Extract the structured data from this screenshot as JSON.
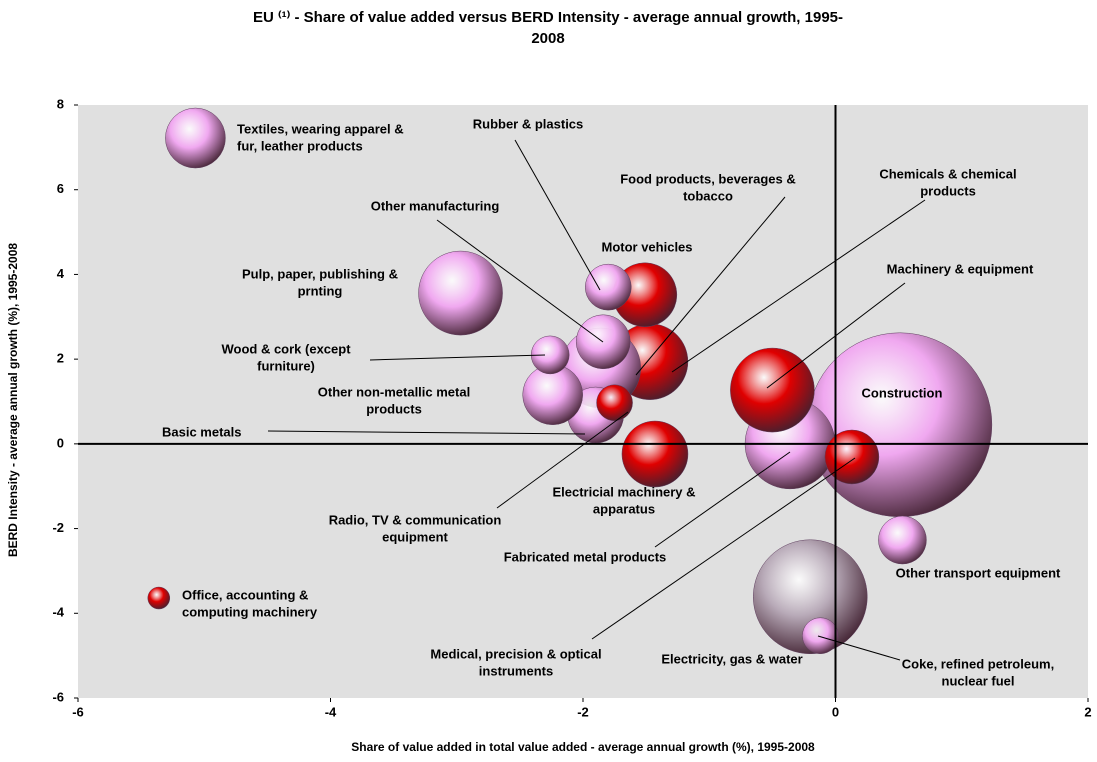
{
  "chart_data": {
    "type": "bubble",
    "title": [
      "EU ⁽¹⁾ - Share of value added versus BERD Intensity - average annual growth, 1995-",
      "2008"
    ],
    "xlabel": "Share of value added in total value added - average annual growth (%), 1995-2008",
    "ylabel": "BERD Intensity - average annual growth (%), 1995-2008",
    "xlim": [
      -6,
      2
    ],
    "xticks": [
      -6,
      -4,
      -2,
      0,
      2
    ],
    "ylim": [
      -6,
      8
    ],
    "yticks": [
      -6,
      -4,
      -2,
      0,
      2,
      4,
      6,
      8
    ],
    "points": [
      {
        "name": [
          "Construction"
        ],
        "x": 0.51,
        "y": 0.45,
        "size": 92,
        "color": "#f0a8f0"
      },
      {
        "name": [
          "Electricity, gas & water"
        ],
        "x": -0.2,
        "y": -3.61,
        "size": 57,
        "color": "#b8aab8"
      },
      {
        "name": [
          "Fabricated metal products"
        ],
        "x": -0.36,
        "y": 0.0,
        "size": 45,
        "color": "#f0a8f0"
      },
      {
        "name": [
          "Pulp, paper, publishing &",
          "prnting"
        ],
        "x": -2.97,
        "y": 3.56,
        "size": 42,
        "color": "#f0a8f0"
      },
      {
        "name": [
          "Machinery & equipment"
        ],
        "x": -0.5,
        "y": 1.27,
        "size": 42,
        "color": "#e00000"
      },
      {
        "name": [
          "Chemicals & chemical",
          "products"
        ],
        "x": -1.47,
        "y": 1.94,
        "size": 38,
        "color": "#e00000"
      },
      {
        "name": [
          "Food products, beverages &",
          "tobacco"
        ],
        "x": -1.86,
        "y": 1.79,
        "size": 40,
        "color": "#f0a8f0"
      },
      {
        "name": [
          "Motor vehicles"
        ],
        "x": -1.51,
        "y": 3.52,
        "size": 32,
        "color": "#e00000"
      },
      {
        "name": [
          "Electricial machinery &",
          "apparatus"
        ],
        "x": -1.43,
        "y": -0.24,
        "size": 33,
        "color": "#e00000"
      },
      {
        "name": [
          "Basic metals"
        ],
        "x": -1.9,
        "y": 0.68,
        "size": 28,
        "color": "#f0a8f0"
      },
      {
        "name": [
          "Other non-metallic metal",
          "products"
        ],
        "x": -2.24,
        "y": 1.16,
        "size": 30,
        "color": "#f0a8f0"
      },
      {
        "name": [
          "Other manufacturing"
        ],
        "x": -1.84,
        "y": 2.41,
        "size": 27,
        "color": "#f0a8f0"
      },
      {
        "name": [
          "Rubber & plastics"
        ],
        "x": -1.8,
        "y": 3.7,
        "size": 23,
        "color": "#f0a8f0"
      },
      {
        "name": [
          "Wood & cork (except",
          "furniture)"
        ],
        "x": -2.26,
        "y": 2.1,
        "size": 19,
        "color": "#f0a8f0"
      },
      {
        "name": [
          "Radio, TV & communication",
          "equipment"
        ],
        "x": -1.75,
        "y": 0.97,
        "size": 18,
        "color": "#e00000"
      },
      {
        "name": [
          "Medical, precision & optical",
          "instruments"
        ],
        "x": 0.13,
        "y": -0.31,
        "size": 27,
        "color": "#e00000"
      },
      {
        "name": [
          "Other transport equipment"
        ],
        "x": 0.53,
        "y": -2.27,
        "size": 24,
        "color": "#f0a8f0"
      },
      {
        "name": [
          "Coke, refined petroleum,",
          "nuclear fuel"
        ],
        "x": -0.12,
        "y": -4.53,
        "size": 18,
        "color": "#f0a8f0"
      },
      {
        "name": [
          "Textiles, wearing apparel &",
          "fur, leather products"
        ],
        "x": -5.07,
        "y": 7.22,
        "size": 30,
        "color": "#f0a8f0"
      },
      {
        "name": [
          "Office, accounting &",
          "computing machinery"
        ],
        "x": -5.36,
        "y": -3.64,
        "size": 11,
        "color": "#e00000"
      }
    ]
  }
}
